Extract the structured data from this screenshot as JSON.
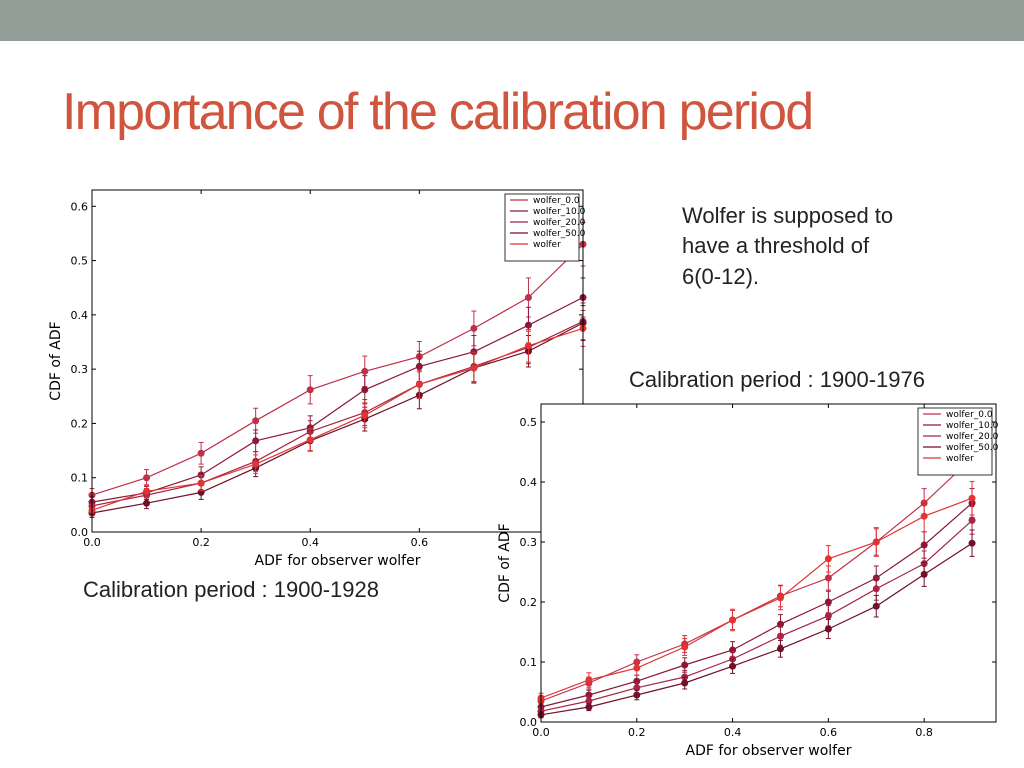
{
  "slide": {
    "title": "Importance of the calibration period",
    "note_lines": [
      "Wolfer is supposed to",
      "have a threshold of",
      "6(0-12)."
    ],
    "caption_right": "Calibration period : 1900-1976",
    "caption_left": "Calibration period : 1900-1928",
    "colors": {
      "title": "#d0553f",
      "topbar": "#929f99"
    }
  },
  "chart_data": [
    {
      "type": "line",
      "title": "",
      "xlabel": "ADF for observer wolfer",
      "ylabel": "CDF of ADF",
      "xlim": [
        0.0,
        0.9
      ],
      "ylim": [
        0.0,
        0.63
      ],
      "xticks": [
        "0.0",
        "0.2",
        "0.4",
        "0.6"
      ],
      "yticks": [
        "0.0",
        "0.1",
        "0.2",
        "0.3",
        "0.4",
        "0.5",
        "0.6"
      ],
      "error_bars": true,
      "legend_position": "top-right",
      "x": [
        0.0,
        0.1,
        0.2,
        0.3,
        0.4,
        0.5,
        0.6,
        0.7,
        0.8,
        0.9
      ],
      "series": [
        {
          "name": "wolfer_0.0",
          "color": "#c0304a",
          "values": [
            0.068,
            0.1,
            0.145,
            0.205,
            0.262,
            0.296,
            0.323,
            0.375,
            0.432,
            0.53
          ],
          "errors": [
            0.012,
            0.015,
            0.02,
            0.023,
            0.026,
            0.028,
            0.028,
            0.032,
            0.036,
            0.04
          ]
        },
        {
          "name": "wolfer_10.0",
          "color": "#8c1838",
          "values": [
            0.055,
            0.072,
            0.105,
            0.168,
            0.192,
            0.262,
            0.305,
            0.332,
            0.381,
            0.432
          ],
          "errors": [
            0.01,
            0.012,
            0.015,
            0.02,
            0.022,
            0.026,
            0.028,
            0.03,
            0.033,
            0.036
          ]
        },
        {
          "name": "wolfer_20.0",
          "color": "#a82545",
          "values": [
            0.048,
            0.068,
            0.09,
            0.13,
            0.185,
            0.22,
            0.272,
            0.305,
            0.34,
            0.388
          ],
          "errors": [
            0.01,
            0.012,
            0.014,
            0.018,
            0.02,
            0.024,
            0.026,
            0.028,
            0.03,
            0.034
          ]
        },
        {
          "name": "wolfer_50.0",
          "color": "#70102a",
          "values": [
            0.035,
            0.053,
            0.073,
            0.118,
            0.168,
            0.208,
            0.252,
            0.302,
            0.333,
            0.385
          ],
          "errors": [
            0.008,
            0.01,
            0.013,
            0.016,
            0.019,
            0.022,
            0.025,
            0.027,
            0.029,
            0.032
          ]
        },
        {
          "name": "wolfer",
          "color": "#e03535",
          "values": [
            0.04,
            0.075,
            0.09,
            0.125,
            0.17,
            0.215,
            0.272,
            0.302,
            0.343,
            0.375
          ],
          "errors": [
            0.01,
            0.012,
            0.014,
            0.017,
            0.02,
            0.023,
            0.026,
            0.028,
            0.03,
            0.033
          ]
        }
      ]
    },
    {
      "type": "line",
      "title": "",
      "xlabel": "ADF for observer wolfer",
      "ylabel": "CDF of ADF",
      "xlim": [
        0.0,
        0.95
      ],
      "ylim": [
        0.0,
        0.53
      ],
      "xticks": [
        "0.0",
        "0.2",
        "0.4",
        "0.6",
        "0.8"
      ],
      "yticks": [
        "0.0",
        "0.1",
        "0.2",
        "0.3",
        "0.4",
        "0.5"
      ],
      "error_bars": true,
      "legend_position": "top-right",
      "x": [
        0.0,
        0.1,
        0.2,
        0.3,
        0.4,
        0.5,
        0.6,
        0.7,
        0.8,
        0.9
      ],
      "series": [
        {
          "name": "wolfer_0.0",
          "color": "#c0304a",
          "values": [
            0.035,
            0.065,
            0.1,
            0.13,
            0.17,
            0.21,
            0.24,
            0.3,
            0.365,
            0.44
          ],
          "errors": [
            0.008,
            0.01,
            0.012,
            0.014,
            0.016,
            0.018,
            0.02,
            0.022,
            0.024,
            0.026
          ]
        },
        {
          "name": "wolfer_10.0",
          "color": "#8c1838",
          "values": [
            0.025,
            0.045,
            0.068,
            0.095,
            0.12,
            0.163,
            0.2,
            0.24,
            0.295,
            0.365
          ],
          "errors": [
            0.006,
            0.008,
            0.01,
            0.012,
            0.014,
            0.016,
            0.018,
            0.02,
            0.022,
            0.024
          ]
        },
        {
          "name": "wolfer_20.0",
          "color": "#a82545",
          "values": [
            0.018,
            0.035,
            0.057,
            0.075,
            0.105,
            0.143,
            0.177,
            0.222,
            0.264,
            0.336
          ],
          "errors": [
            0.005,
            0.007,
            0.009,
            0.011,
            0.013,
            0.015,
            0.017,
            0.019,
            0.021,
            0.023
          ]
        },
        {
          "name": "wolfer_50.0",
          "color": "#70102a",
          "values": [
            0.012,
            0.025,
            0.045,
            0.065,
            0.093,
            0.122,
            0.155,
            0.193,
            0.246,
            0.298
          ],
          "errors": [
            0.005,
            0.006,
            0.008,
            0.01,
            0.012,
            0.014,
            0.016,
            0.018,
            0.02,
            0.022
          ]
        },
        {
          "name": "wolfer",
          "color": "#e03535",
          "values": [
            0.04,
            0.07,
            0.09,
            0.125,
            0.17,
            0.207,
            0.272,
            0.3,
            0.343,
            0.373
          ],
          "errors": [
            0.008,
            0.012,
            0.012,
            0.014,
            0.018,
            0.02,
            0.022,
            0.024,
            0.026,
            0.028
          ]
        }
      ]
    }
  ]
}
